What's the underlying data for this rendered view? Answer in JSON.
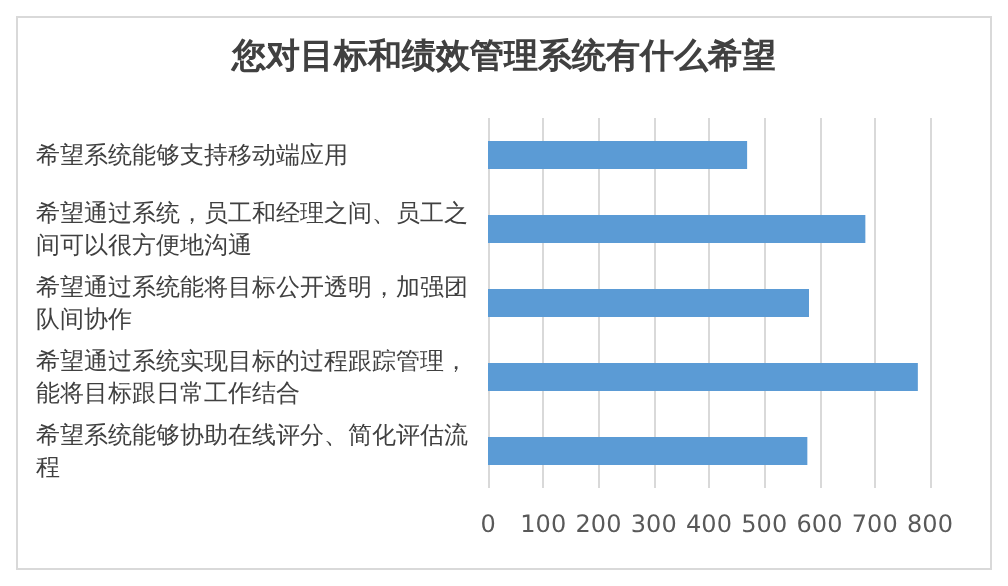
{
  "chart_data": {
    "type": "bar",
    "orientation": "horizontal",
    "title": "您对目标和绩效管理系统有什么希望",
    "categories": [
      "希望系统能够支持移动端应用",
      "希望通过系统，员工和经理之间、员工之间可以很方便地沟通",
      "希望通过系统能将目标公开透明，加强团队间协作",
      "希望通过系统实现目标的过程跟踪管理，能将目标跟日常工作结合",
      "希望系统能够协助在线评分、简化评估流程"
    ],
    "values": [
      469,
      683,
      581,
      778,
      578
    ],
    "color": "#5b9bd5",
    "xlim": [
      0,
      800
    ],
    "xticks": [
      0,
      100,
      200,
      300,
      400,
      500,
      600,
      700,
      800
    ],
    "grid": "x"
  }
}
